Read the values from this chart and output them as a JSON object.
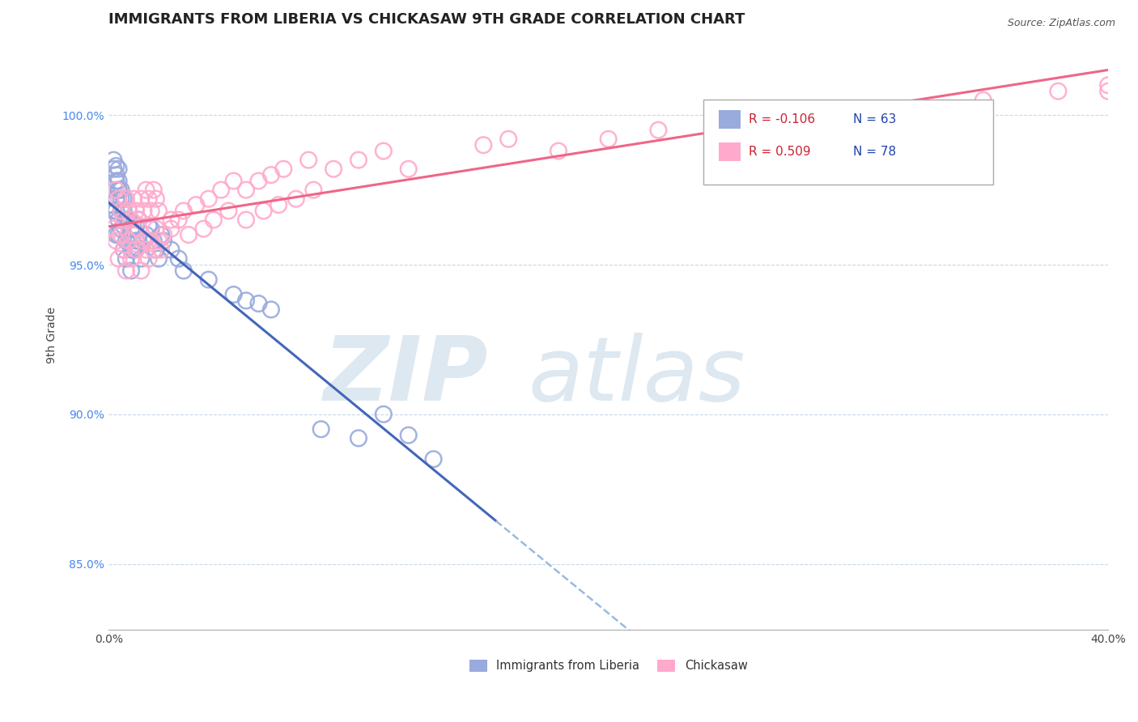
{
  "title": "IMMIGRANTS FROM LIBERIA VS CHICKASAW 9TH GRADE CORRELATION CHART",
  "source_text": "Source: ZipAtlas.com",
  "ylabel": "9th Grade",
  "xlim": [
    0.0,
    0.4
  ],
  "ylim": [
    0.828,
    1.025
  ],
  "xticks": [
    0.0,
    0.1,
    0.2,
    0.3,
    0.4
  ],
  "xtick_labels": [
    "0.0%",
    "",
    "",
    "",
    "40.0%"
  ],
  "yticks": [
    0.85,
    0.9,
    0.95,
    1.0
  ],
  "ytick_labels": [
    "85.0%",
    "90.0%",
    "95.0%",
    "100.0%"
  ],
  "grid_color": "#c8d8e8",
  "background_color": "#ffffff",
  "blue_color": "#99aadd",
  "blue_line_color": "#4466bb",
  "blue_line_dashed_color": "#99bbdd",
  "pink_color": "#ffaacc",
  "pink_line_color": "#ee6688",
  "liberia_R": -0.106,
  "liberia_N": 63,
  "chickasaw_R": 0.509,
  "chickasaw_N": 78,
  "liberia_name": "Immigrants from Liberia",
  "chickasaw_name": "Chickasaw",
  "liberia_x": [
    0.001,
    0.002,
    0.002,
    0.003,
    0.003,
    0.003,
    0.004,
    0.004,
    0.004,
    0.005,
    0.005,
    0.006,
    0.006,
    0.007,
    0.007,
    0.007,
    0.008,
    0.008,
    0.009,
    0.009,
    0.009,
    0.01,
    0.01,
    0.011,
    0.011,
    0.012,
    0.012,
    0.013,
    0.014,
    0.015,
    0.016,
    0.017,
    0.018,
    0.019,
    0.02,
    0.021,
    0.022,
    0.025,
    0.028,
    0.03,
    0.003,
    0.004,
    0.005,
    0.006,
    0.007,
    0.002,
    0.003,
    0.004,
    0.005,
    0.006,
    0.002,
    0.003,
    0.004,
    0.04,
    0.05,
    0.06,
    0.065,
    0.1,
    0.11,
    0.13,
    0.055,
    0.085,
    0.12
  ],
  "liberia_y": [
    0.97,
    0.968,
    0.965,
    0.972,
    0.968,
    0.96,
    0.975,
    0.965,
    0.96,
    0.968,
    0.962,
    0.963,
    0.955,
    0.965,
    0.958,
    0.952,
    0.965,
    0.958,
    0.962,
    0.955,
    0.948,
    0.96,
    0.955,
    0.963,
    0.958,
    0.965,
    0.958,
    0.952,
    0.958,
    0.96,
    0.963,
    0.962,
    0.958,
    0.955,
    0.952,
    0.96,
    0.958,
    0.955,
    0.952,
    0.948,
    0.978,
    0.975,
    0.972,
    0.968,
    0.965,
    0.982,
    0.98,
    0.978,
    0.975,
    0.972,
    0.985,
    0.983,
    0.982,
    0.945,
    0.94,
    0.937,
    0.935,
    0.892,
    0.9,
    0.885,
    0.938,
    0.895,
    0.893
  ],
  "chickasaw_x": [
    0.002,
    0.003,
    0.004,
    0.005,
    0.006,
    0.007,
    0.008,
    0.009,
    0.01,
    0.011,
    0.012,
    0.013,
    0.014,
    0.015,
    0.016,
    0.017,
    0.018,
    0.019,
    0.02,
    0.021,
    0.003,
    0.004,
    0.005,
    0.006,
    0.007,
    0.008,
    0.009,
    0.01,
    0.011,
    0.012,
    0.013,
    0.014,
    0.015,
    0.016,
    0.017,
    0.018,
    0.019,
    0.02,
    0.025,
    0.03,
    0.035,
    0.04,
    0.045,
    0.05,
    0.055,
    0.06,
    0.065,
    0.07,
    0.08,
    0.09,
    0.1,
    0.11,
    0.12,
    0.15,
    0.16,
    0.18,
    0.2,
    0.22,
    0.25,
    0.28,
    0.3,
    0.32,
    0.35,
    0.38,
    0.4,
    0.4,
    0.022,
    0.025,
    0.028,
    0.032,
    0.038,
    0.042,
    0.048,
    0.055,
    0.062,
    0.068,
    0.075,
    0.082
  ],
  "chickasaw_y": [
    0.962,
    0.958,
    0.952,
    0.96,
    0.955,
    0.948,
    0.958,
    0.952,
    0.96,
    0.955,
    0.962,
    0.948,
    0.958,
    0.955,
    0.952,
    0.958,
    0.955,
    0.962,
    0.958,
    0.955,
    0.975,
    0.972,
    0.968,
    0.965,
    0.972,
    0.968,
    0.965,
    0.972,
    0.968,
    0.965,
    0.972,
    0.968,
    0.975,
    0.972,
    0.968,
    0.975,
    0.972,
    0.968,
    0.965,
    0.968,
    0.97,
    0.972,
    0.975,
    0.978,
    0.975,
    0.978,
    0.98,
    0.982,
    0.985,
    0.982,
    0.985,
    0.988,
    0.982,
    0.99,
    0.992,
    0.988,
    0.992,
    0.995,
    0.998,
    1.0,
    0.998,
    1.002,
    1.005,
    1.008,
    1.01,
    1.008,
    0.96,
    0.962,
    0.965,
    0.96,
    0.962,
    0.965,
    0.968,
    0.965,
    0.968,
    0.97,
    0.972,
    0.975
  ],
  "liberia_line_x_solid_end": 0.155,
  "legend_R_color": "#cc2233",
  "legend_N_color": "#2244aa",
  "watermark_zip": "ZIP",
  "watermark_atlas": "atlas",
  "watermark_color": "#dde8f0",
  "title_fontsize": 13,
  "axis_label_fontsize": 10,
  "tick_fontsize": 10,
  "source_fontsize": 9,
  "legend_fontsize": 11
}
